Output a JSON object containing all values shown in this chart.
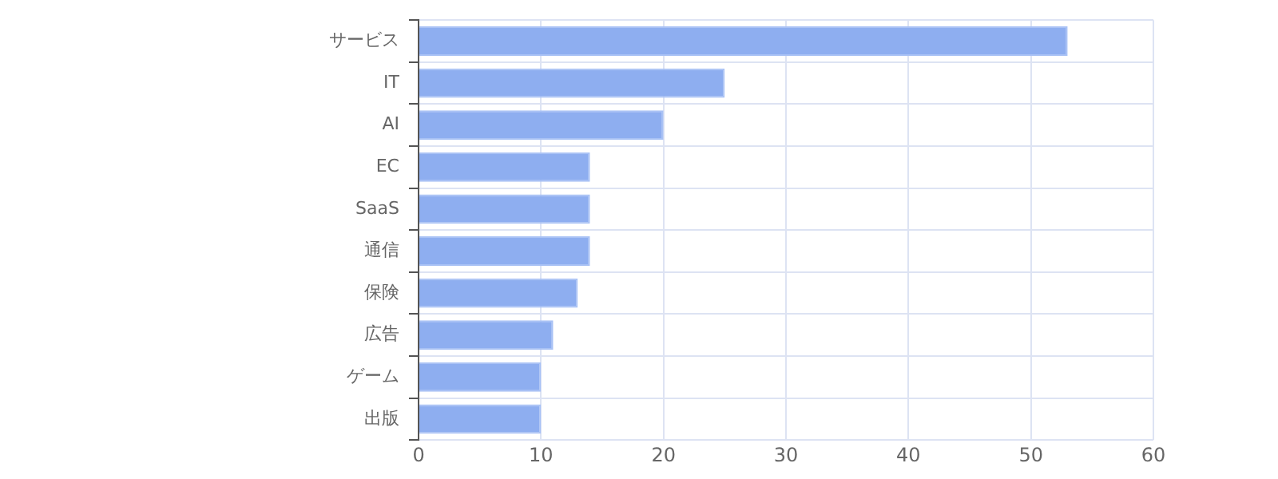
{
  "chart_data": {
    "type": "bar",
    "orientation": "horizontal",
    "categories": [
      "サービス",
      "IT",
      "AI",
      "EC",
      "SaaS",
      "通信",
      "保険",
      "広告",
      "ゲーム",
      "出版"
    ],
    "values": [
      53,
      25,
      20,
      14,
      14,
      14,
      13,
      11,
      10,
      10
    ],
    "color": "#8eaef0",
    "xlim": [
      0,
      60
    ],
    "xticks": [
      0,
      10,
      20,
      30,
      40,
      50,
      60
    ],
    "grid": true,
    "legend": false
  }
}
